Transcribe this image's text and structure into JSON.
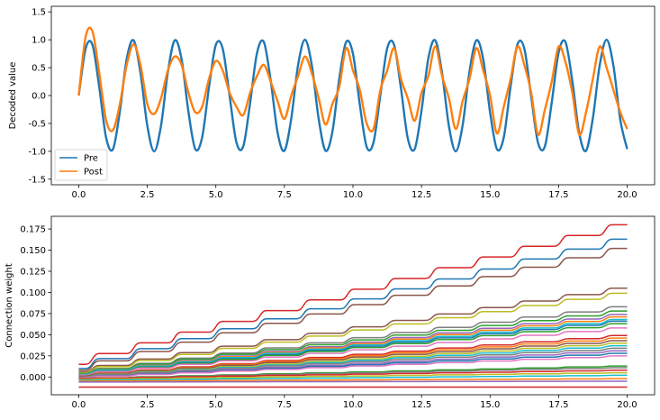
{
  "chart_data": [
    {
      "type": "line",
      "title": "",
      "xlabel": "",
      "ylabel": "Decoded value",
      "xlim": [
        -1.0,
        21.0
      ],
      "ylim": [
        -1.6,
        1.6
      ],
      "xticks": [
        0.0,
        2.5,
        5.0,
        7.5,
        10.0,
        12.5,
        15.0,
        17.5,
        20.0
      ],
      "xtick_labels": [
        "0.0",
        "2.5",
        "5.0",
        "7.5",
        "10.0",
        "12.5",
        "15.0",
        "17.5",
        "20.0"
      ],
      "yticks": [
        -1.5,
        -1.0,
        -0.5,
        0.0,
        0.5,
        1.0,
        1.5
      ],
      "ytick_labels": [
        "-1.5",
        "-1.0",
        "-0.5",
        "0.0",
        "0.5",
        "1.0",
        "1.5"
      ],
      "grid": false,
      "legend": {
        "placement": "lower-left",
        "entries": [
          "Pre",
          "Post"
        ]
      },
      "series": [
        {
          "name": "Pre",
          "color": "#1f77b4",
          "x": [
            0.0,
            0.25,
            0.5,
            0.75,
            1.0,
            1.25,
            1.5,
            1.75,
            2.0,
            2.25,
            2.5,
            2.75,
            3.0,
            3.25,
            3.5,
            3.75,
            4.0,
            4.25,
            4.5,
            4.75,
            5.0,
            5.25,
            5.5,
            5.75,
            6.0,
            6.25,
            6.5,
            6.75,
            7.0,
            7.25,
            7.5,
            7.75,
            8.0,
            8.25,
            8.5,
            8.75,
            9.0,
            9.25,
            9.5,
            9.75,
            10.0,
            10.25,
            10.5,
            10.75,
            11.0,
            11.25,
            11.5,
            11.75,
            12.0,
            12.25,
            12.5,
            12.75,
            13.0,
            13.25,
            13.5,
            13.75,
            14.0,
            14.25,
            14.5,
            14.75,
            15.0,
            15.25,
            15.5,
            15.75,
            16.0,
            16.25,
            16.5,
            16.75,
            17.0,
            17.25,
            17.5,
            17.75,
            18.0,
            18.25,
            18.5,
            18.75,
            19.0,
            19.25,
            19.5,
            19.75,
            20.0
          ],
          "y": [
            0.0,
            0.84,
            0.91,
            0.14,
            -0.76,
            -0.96,
            -0.28,
            0.66,
            0.99,
            0.41,
            -0.54,
            -1.0,
            -0.54,
            0.42,
            0.99,
            0.65,
            -0.29,
            -0.96,
            -0.75,
            0.15,
            0.91,
            0.84,
            0.0,
            -0.84,
            -0.91,
            -0.13,
            0.76,
            0.96,
            0.27,
            -0.66,
            -0.99,
            -0.41,
            0.55,
            1.0,
            0.54,
            -0.42,
            -0.99,
            -0.65,
            0.3,
            0.96,
            0.75,
            -0.16,
            -0.92,
            -0.84,
            0.01,
            0.85,
            0.91,
            0.13,
            -0.77,
            -0.96,
            -0.27,
            0.67,
            0.99,
            0.4,
            -0.55,
            -1.0,
            -0.53,
            0.43,
            0.99,
            0.65,
            -0.3,
            -0.96,
            -0.75,
            0.17,
            0.92,
            0.84,
            -0.02,
            -0.85,
            -0.91,
            -0.12,
            0.77,
            0.96,
            0.26,
            -0.67,
            -0.99,
            -0.4,
            0.55,
            1.0,
            0.53,
            -0.44,
            -0.96
          ]
        },
        {
          "name": "Post",
          "color": "#ff7f0e",
          "x": [
            0.0,
            0.25,
            0.5,
            0.75,
            1.0,
            1.25,
            1.5,
            1.75,
            2.0,
            2.25,
            2.5,
            2.75,
            3.0,
            3.25,
            3.5,
            3.75,
            4.0,
            4.25,
            4.5,
            4.75,
            5.0,
            5.25,
            5.5,
            5.75,
            6.0,
            6.25,
            6.5,
            6.75,
            7.0,
            7.25,
            7.5,
            7.75,
            8.0,
            8.25,
            8.5,
            8.75,
            9.0,
            9.25,
            9.5,
            9.75,
            10.0,
            10.25,
            10.5,
            10.75,
            11.0,
            11.25,
            11.5,
            11.75,
            12.0,
            12.25,
            12.5,
            12.75,
            13.0,
            13.25,
            13.5,
            13.75,
            14.0,
            14.25,
            14.5,
            14.75,
            15.0,
            15.25,
            15.5,
            15.75,
            16.0,
            16.25,
            16.5,
            16.75,
            17.0,
            17.25,
            17.5,
            17.75,
            18.0,
            18.25,
            18.5,
            18.75,
            19.0,
            19.25,
            19.5,
            19.75,
            20.0
          ],
          "y": [
            0.0,
            1.05,
            1.15,
            0.4,
            -0.45,
            -0.62,
            -0.15,
            0.55,
            0.92,
            0.55,
            -0.15,
            -0.33,
            -0.05,
            0.45,
            0.7,
            0.55,
            0.05,
            -0.3,
            -0.2,
            0.3,
            0.62,
            0.45,
            0.05,
            -0.2,
            -0.35,
            0.05,
            0.35,
            0.55,
            0.25,
            -0.1,
            -0.42,
            0.0,
            0.35,
            0.7,
            0.4,
            -0.05,
            -0.52,
            -0.15,
            0.15,
            0.85,
            0.45,
            0.1,
            -0.5,
            -0.6,
            0.1,
            0.45,
            0.85,
            0.3,
            -0.05,
            -0.45,
            0.05,
            0.35,
            0.88,
            0.35,
            -0.05,
            -0.6,
            -0.1,
            0.3,
            0.85,
            0.45,
            0.0,
            -0.68,
            -0.2,
            0.3,
            0.88,
            0.55,
            0.05,
            -0.7,
            -0.25,
            0.25,
            0.88,
            0.6,
            0.05,
            -0.7,
            -0.3,
            0.3,
            0.88,
            0.5,
            0.1,
            -0.3,
            -0.6
          ]
        }
      ]
    },
    {
      "type": "line",
      "title": "",
      "xlabel": "",
      "ylabel": "Connection weight",
      "xlim": [
        -1.0,
        21.0
      ],
      "ylim": [
        -0.021,
        0.19
      ],
      "xticks": [
        0.0,
        2.5,
        5.0,
        7.5,
        10.0,
        12.5,
        15.0,
        17.5,
        20.0
      ],
      "xtick_labels": [
        "0.0",
        "2.5",
        "5.0",
        "7.5",
        "10.0",
        "12.5",
        "15.0",
        "17.5",
        "20.0"
      ],
      "yticks": [
        0.0,
        0.025,
        0.05,
        0.075,
        0.1,
        0.125,
        0.15,
        0.175
      ],
      "ytick_labels": [
        "0.000",
        "0.025",
        "0.050",
        "0.075",
        "0.100",
        "0.125",
        "0.150",
        "0.175"
      ],
      "grid": false,
      "step_times": [
        0.5,
        2.0,
        3.5,
        5.0,
        6.6,
        8.2,
        9.8,
        11.3,
        12.9,
        14.5,
        16.0,
        17.6,
        19.2
      ],
      "series": [
        {
          "color": "#d62728",
          "start": 0.015,
          "end": 0.18
        },
        {
          "color": "#1f77b4",
          "start": 0.01,
          "end": 0.163
        },
        {
          "color": "#8c564b",
          "start": 0.008,
          "end": 0.152
        },
        {
          "color": "#8c564b",
          "start": 0.006,
          "end": 0.105
        },
        {
          "color": "#bcbd22",
          "start": 0.005,
          "end": 0.099
        },
        {
          "color": "#7f7f7f",
          "start": 0.004,
          "end": 0.083
        },
        {
          "color": "#2ca02c",
          "start": 0.004,
          "end": 0.078
        },
        {
          "color": "#9467bd",
          "start": 0.003,
          "end": 0.074
        },
        {
          "color": "#ff7f0e",
          "start": 0.003,
          "end": 0.071
        },
        {
          "color": "#17becf",
          "start": 0.003,
          "end": 0.068
        },
        {
          "color": "#1f77b4",
          "start": 0.002,
          "end": 0.066
        },
        {
          "color": "#2ca02c",
          "start": 0.002,
          "end": 0.063
        },
        {
          "color": "#e377c2",
          "start": 0.002,
          "end": 0.058
        },
        {
          "color": "#d62728",
          "start": 0.001,
          "end": 0.049
        },
        {
          "color": "#ff7f0e",
          "start": 0.001,
          "end": 0.046
        },
        {
          "color": "#8c564b",
          "start": 0.001,
          "end": 0.043
        },
        {
          "color": "#bcbd22",
          "start": 0.0,
          "end": 0.04
        },
        {
          "color": "#17becf",
          "start": 0.0,
          "end": 0.037
        },
        {
          "color": "#7f7f7f",
          "start": 0.0,
          "end": 0.034
        },
        {
          "color": "#9467bd",
          "start": -0.001,
          "end": 0.031
        },
        {
          "color": "#1f77b4",
          "start": -0.001,
          "end": 0.028
        },
        {
          "color": "#e377c2",
          "start": -0.001,
          "end": 0.025
        },
        {
          "color": "#2ca02c",
          "start": -0.002,
          "end": 0.013
        },
        {
          "color": "#7f7f7f",
          "start": -0.002,
          "end": 0.011
        },
        {
          "color": "#d62728",
          "start": -0.002,
          "end": 0.008
        },
        {
          "color": "#bcbd22",
          "start": -0.003,
          "end": 0.005
        },
        {
          "color": "#17becf",
          "start": -0.004,
          "end": 0.002
        },
        {
          "color": "#ff7f0e",
          "start": -0.005,
          "end": -0.002
        },
        {
          "color": "#9467bd",
          "start": -0.006,
          "end": -0.005
        },
        {
          "color": "#d62728",
          "start": -0.012,
          "end": -0.012
        }
      ]
    }
  ]
}
